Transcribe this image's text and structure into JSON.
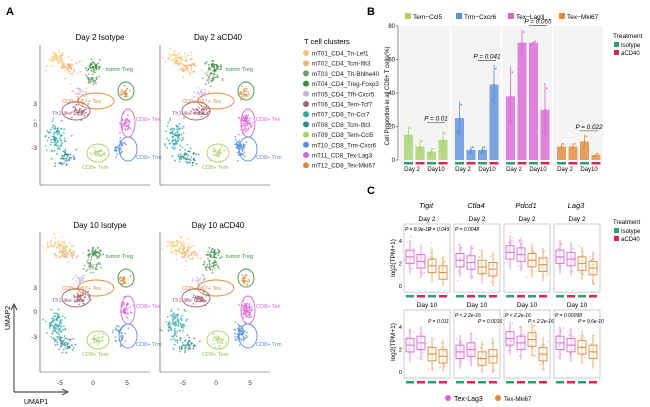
{
  "panel_a": {
    "label": "A",
    "plots": [
      {
        "title": "Day 2 Isotype",
        "large": false
      },
      {
        "title": "Day 2 aCD40",
        "large": true
      },
      {
        "title": "Day 10 Isotype",
        "large": false
      },
      {
        "title": "Day 10 aCD40",
        "large": true
      }
    ],
    "cluster_labels": [
      "tumor Treg",
      "CD8+Ki67+ Tex",
      "CD8+ Tex",
      "Th1-like cells",
      "CD8+ Trm",
      "CD8+ Tem"
    ],
    "x_axis_label": "UMAP1",
    "y_axis_label": "UMAP2",
    "x_ticks": [
      "-5",
      "0",
      "5"
    ],
    "y_ticks": [
      "3",
      "0",
      "-3"
    ],
    "legend_title": "T cell clusters",
    "legend": [
      {
        "name": "mT01_CD4_Tn-Lef1",
        "color": "#f4c66d"
      },
      {
        "name": "mT02_CD4_Tcm-Ifit3",
        "color": "#f0b27a"
      },
      {
        "name": "mT03_CD4_Th-Bhlhe40",
        "color": "#6b9a6b"
      },
      {
        "name": "mT04_CD4_Treg-Foxp3",
        "color": "#3e8e41"
      },
      {
        "name": "mT05_CD4_Tfh-Cxcr5",
        "color": "#c7b4dd"
      },
      {
        "name": "mT06_CD4_Tem-Tcf7",
        "color": "#a55f78"
      },
      {
        "name": "mT07_CD8_Tn-Ccr7",
        "color": "#2ea7a0"
      },
      {
        "name": "mT08_CD8_Tcm-Ifit3",
        "color": "#2b8a8a"
      },
      {
        "name": "mT09_CD8_Tem-Ccl5",
        "color": "#a8d36b"
      },
      {
        "name": "mT10_CD8_Trm-Cxcr6",
        "color": "#5b8fd9"
      },
      {
        "name": "mT11_CD8_Tex-Lag3",
        "color": "#d966d6"
      },
      {
        "name": "mT12_CD8_Tex-Mki67",
        "color": "#e08a3c"
      }
    ]
  },
  "panel_b": {
    "label": "B",
    "y_label": "Cell Proportion in all CD8+ T cells(%)",
    "y_ticks": [
      "0",
      "20",
      "40",
      "60",
      "80"
    ],
    "treatment_title": "Treatment",
    "treatment": [
      {
        "name": "Isotype",
        "color": "#2e9e6e"
      },
      {
        "name": "aCD40",
        "color": "#e0234e"
      }
    ],
    "facet_titles": [
      "Tem−Ccl5",
      "Trm−Cxcr6",
      "Tex−Lag3",
      "Tex−Mki67"
    ],
    "x_ticks": [
      "Day 2",
      "Day10"
    ],
    "p_values": [
      "P = 0.01",
      "P = 0.041",
      "P = 0.055",
      "P = 0.022"
    ]
  },
  "panel_c": {
    "label": "C",
    "genes": [
      "Tigit",
      "Ctla4",
      "Pdcd1",
      "Lag3"
    ],
    "day_labels": [
      "Day 2",
      "Day 10"
    ],
    "y_label": "log2(TPM+1)",
    "y_ticks": [
      "4",
      "2",
      "0"
    ],
    "p_top": [
      "P = 8.9e-10",
      "P = 0.049",
      "P = 0.0048",
      "",
      "",
      "",
      "",
      ""
    ],
    "p_bottom": [
      "",
      "P = 0.011",
      "P < 2.2e-16",
      "P = 0.0016",
      "P < 2.2e-16",
      "P < 2.2e-16",
      "P = 0.00098",
      "P = 9.6e-10"
    ],
    "treatment_title": "Treatment",
    "treatment": [
      {
        "name": "Isotype",
        "color": "#2e9e6e"
      },
      {
        "name": "aCD40",
        "color": "#e0234e"
      }
    ],
    "bottom_legend": [
      {
        "name": "Tex-Lag3",
        "color": "#d966d6"
      },
      {
        "name": "Tex-Mki67",
        "color": "#e08a3c"
      }
    ]
  },
  "chart_data": {
    "type": "bar",
    "title": "",
    "ylabel": "Cell Proportion in all CD8+ T cells(%)",
    "ylim": [
      0,
      80
    ],
    "categories": [
      "Day 2 Isotype",
      "Day 2 aCD40",
      "Day10 Isotype",
      "Day10 aCD40"
    ],
    "series": [
      {
        "name": "Tem−Ccl5",
        "color": "#a8d36b",
        "values": [
          15,
          8,
          5,
          12
        ]
      },
      {
        "name": "Trm−Cxcr6",
        "color": "#5b8fd9",
        "values": [
          25,
          6,
          6,
          45
        ]
      },
      {
        "name": "Tex−Lag3",
        "color": "#d966d6",
        "values": [
          38,
          70,
          70,
          30
        ]
      },
      {
        "name": "Tex−Mki67",
        "color": "#e08a3c",
        "values": [
          8,
          8,
          11,
          3
        ]
      }
    ],
    "error": [
      [
        5,
        4,
        2,
        5
      ],
      [
        10,
        2,
        2,
        12
      ],
      [
        18,
        8,
        1,
        16
      ],
      [
        2,
        2,
        4,
        1
      ]
    ],
    "legend_position": "top"
  }
}
